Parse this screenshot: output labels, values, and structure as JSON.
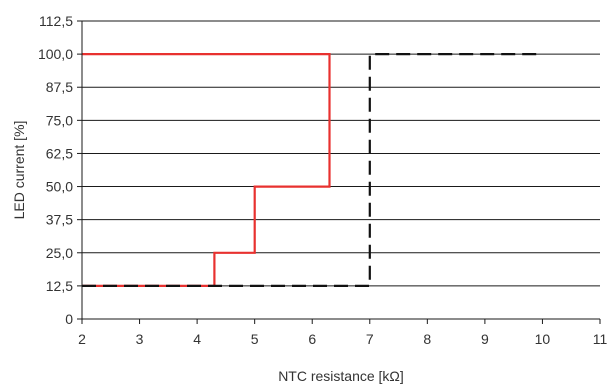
{
  "chart_data": {
    "type": "line",
    "title": "",
    "xlabel": "NTC resistance [kΩ]",
    "ylabel": "LED current [%]",
    "xlim": [
      2,
      11
    ],
    "ylim": [
      0,
      112.5
    ],
    "grid": "horizontal",
    "x_ticks": [
      2,
      3,
      4,
      5,
      6,
      7,
      8,
      9,
      10,
      11
    ],
    "x_tick_labels": [
      "2",
      "3",
      "4",
      "5",
      "6",
      "7",
      "8",
      "9",
      "10",
      "11"
    ],
    "y_ticks": [
      0,
      12.5,
      25,
      37.5,
      50,
      62.5,
      75,
      87.5,
      100,
      112.5
    ],
    "y_tick_labels": [
      "0",
      "12,5",
      "25,0",
      "37,5",
      "50,0",
      "62,5",
      "75,0",
      "87,5",
      "100,0",
      "112,5"
    ],
    "series": [
      {
        "color": "#e8312f",
        "style": "solid",
        "points": [
          [
            2,
            12.5
          ],
          [
            4.3,
            12.5
          ],
          [
            4.3,
            25
          ],
          [
            5,
            25
          ],
          [
            5,
            50
          ],
          [
            6.3,
            50
          ],
          [
            6.3,
            100
          ],
          [
            2,
            100
          ]
        ]
      },
      {
        "color": "#111111",
        "style": "dashed",
        "points": [
          [
            2,
            12.5
          ],
          [
            7,
            12.5
          ],
          [
            7,
            100
          ],
          [
            10,
            100
          ]
        ]
      }
    ]
  }
}
